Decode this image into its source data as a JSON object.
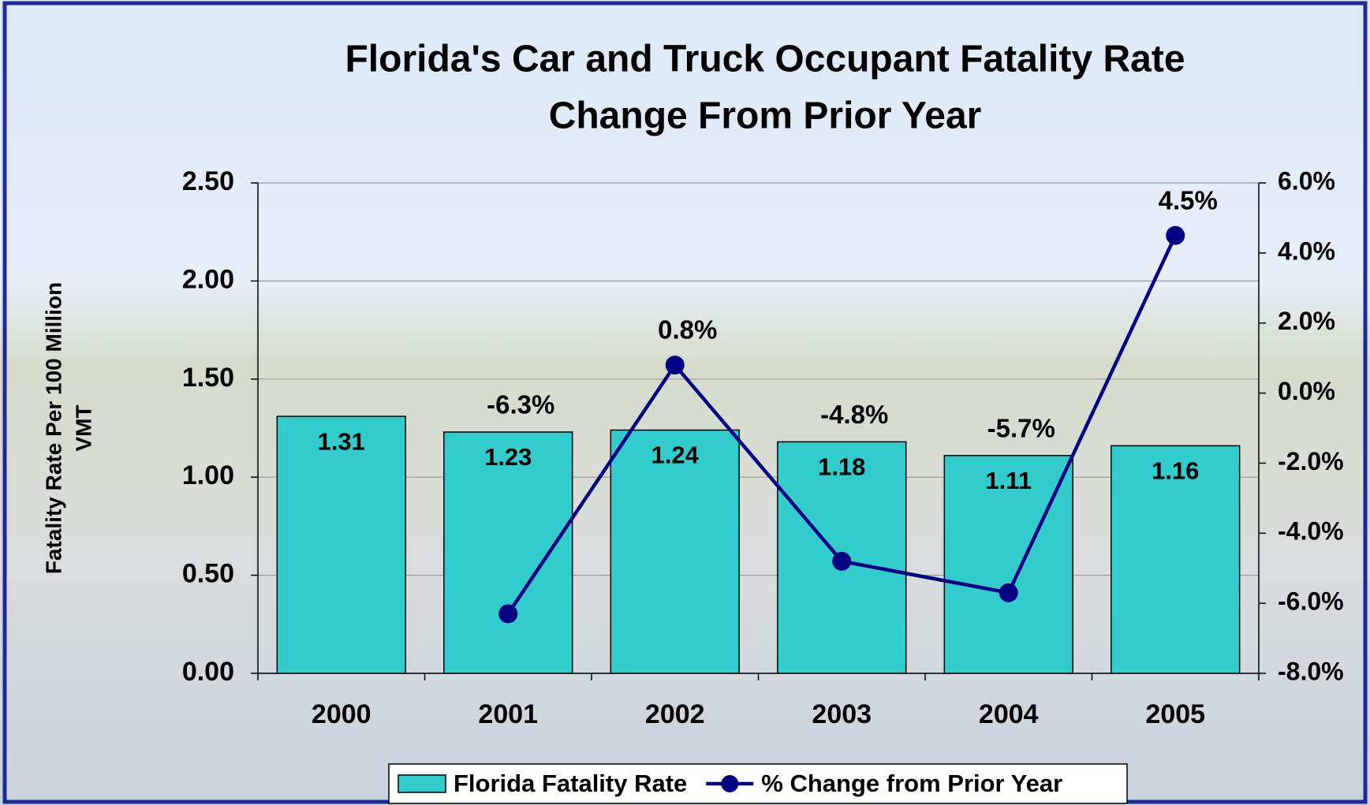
{
  "chart_data": {
    "type": "bar",
    "title": [
      "Florida's Car and Truck Occupant Fatality Rate",
      "Change From Prior Year"
    ],
    "ylabel": [
      "Fatality Rate Per 100 Million",
      "VMT"
    ],
    "categories": [
      "2000",
      "2001",
      "2002",
      "2003",
      "2004",
      "2005"
    ],
    "series": [
      {
        "name": "Florida Fatality Rate",
        "color": "#33cccc",
        "values": [
          1.31,
          1.23,
          1.24,
          1.18,
          1.11,
          1.16
        ]
      },
      {
        "name": "% Change from Prior Year",
        "color": "#000080",
        "axis": "y2",
        "type": "line",
        "values": [
          null,
          -6.3,
          0.8,
          -4.8,
          -5.7,
          4.5
        ],
        "value_labels": [
          null,
          "-6.3%",
          "0.8%",
          "-4.8%",
          "-5.7%",
          "4.5%"
        ]
      }
    ],
    "ylim": [
      0,
      2.5
    ],
    "yticks": [
      {
        "value": 0,
        "label": "0.00"
      },
      {
        "value": 0.5,
        "label": "0.50"
      },
      {
        "value": 1,
        "label": "1.00"
      },
      {
        "value": 1.5,
        "label": "1.50"
      },
      {
        "value": 2,
        "label": "2.00"
      },
      {
        "value": 2.5,
        "label": "2.50"
      }
    ],
    "y2lim": [
      -8,
      6
    ],
    "y2ticks": [
      {
        "value": -8,
        "label": "-8.0%"
      },
      {
        "value": -6,
        "label": "-6.0%"
      },
      {
        "value": -4,
        "label": "-4.0%"
      },
      {
        "value": -2,
        "label": "-2.0%"
      },
      {
        "value": 0,
        "label": "0.0%"
      },
      {
        "value": 2,
        "label": "2.0%"
      },
      {
        "value": 4,
        "label": "4.0%"
      },
      {
        "value": 6,
        "label": "6.0%"
      }
    ],
    "grid": true,
    "legend": "bottom"
  }
}
